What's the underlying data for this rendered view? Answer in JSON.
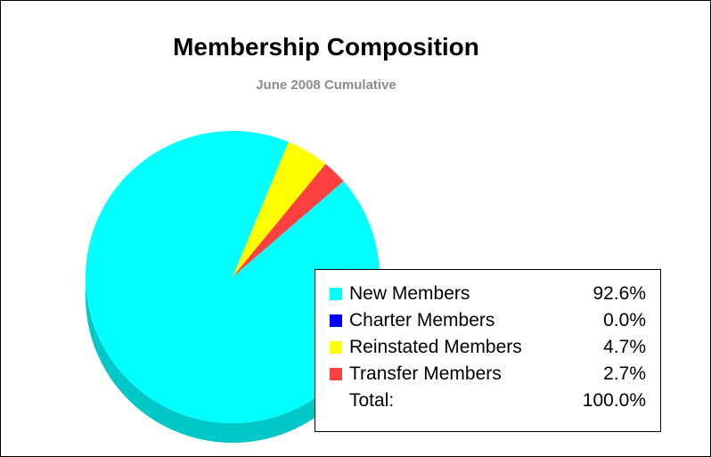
{
  "chart_data": {
    "type": "pie",
    "title": "Membership Composition",
    "subtitle": "June 2008 Cumulative",
    "series": [
      {
        "name": "New Members",
        "value": 92.6,
        "label": "92.6%",
        "color": "#00ffff",
        "side_color": "#00c8c8"
      },
      {
        "name": "Charter Members",
        "value": 0.0,
        "label": "0.0%",
        "color": "#0000ff",
        "side_color": "#0000c0"
      },
      {
        "name": "Reinstated Members",
        "value": 4.7,
        "label": "4.7%",
        "color": "#ffff00",
        "side_color": "#c8c800"
      },
      {
        "name": "Transfer Members",
        "value": 2.7,
        "label": "2.7%",
        "color": "#ff4040",
        "side_color": "#c03030"
      }
    ],
    "total": {
      "label": "Total:",
      "value": "100.0%"
    },
    "legend_position": "bottom-right"
  }
}
